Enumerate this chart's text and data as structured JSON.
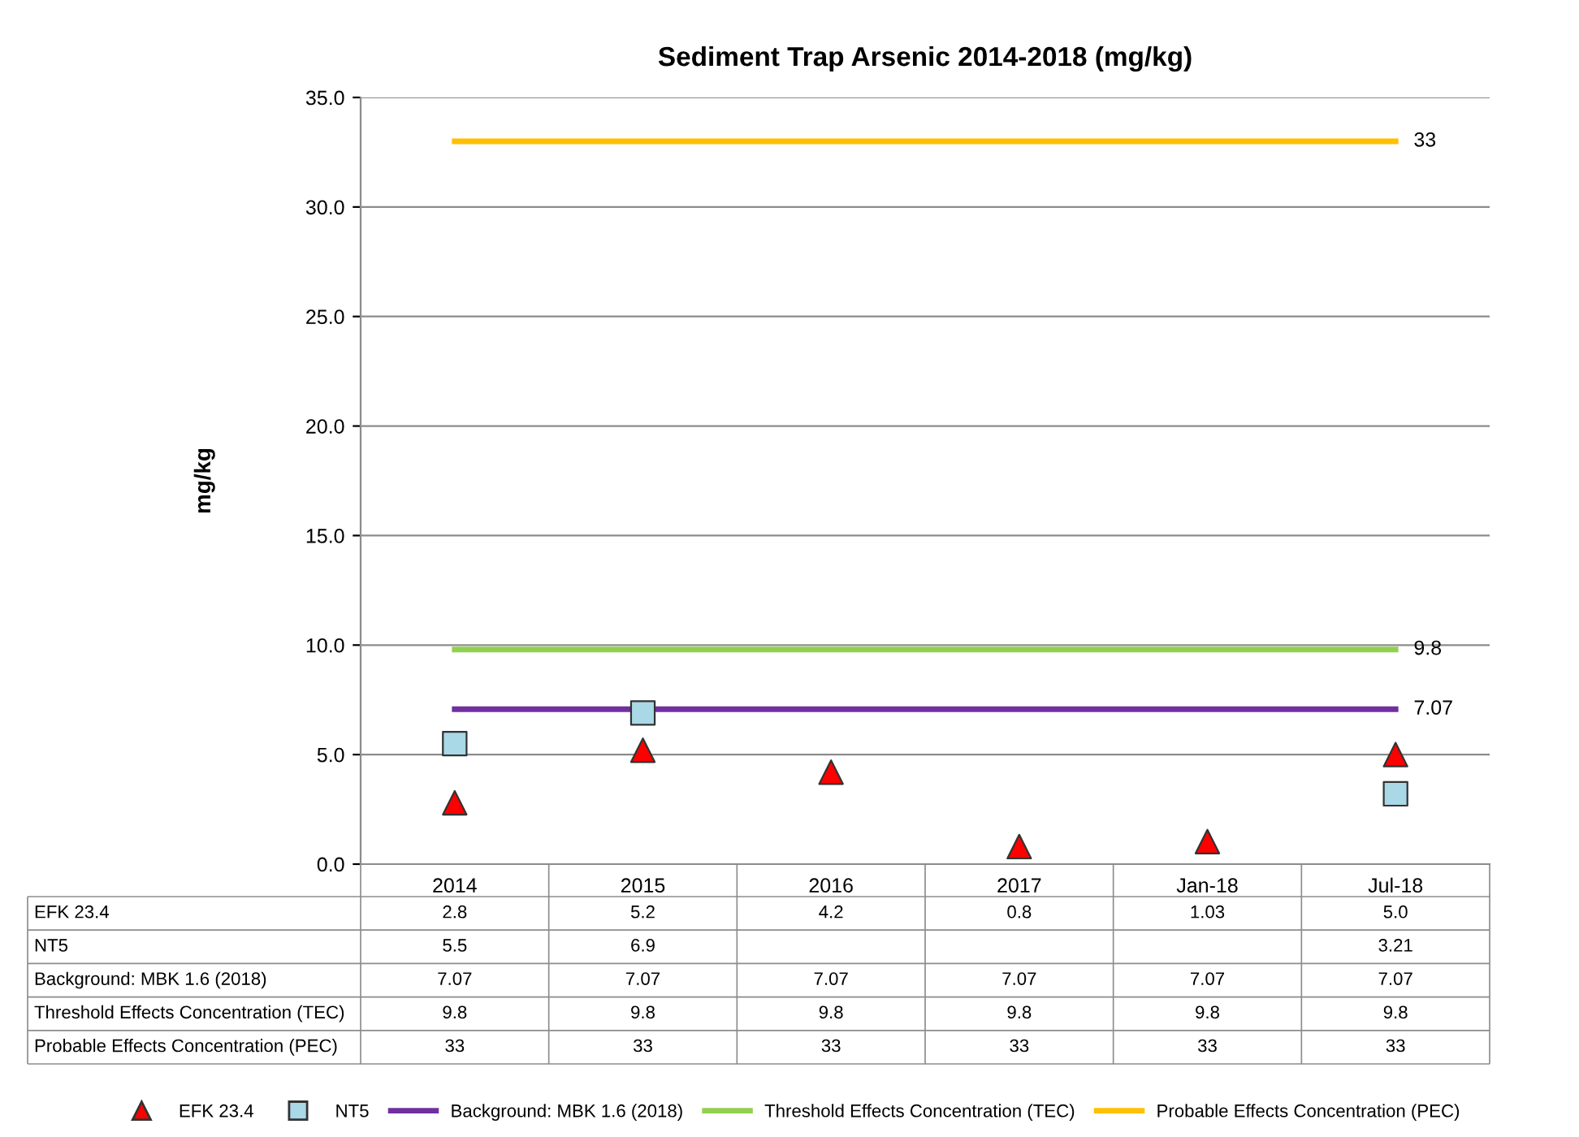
{
  "chart_data": {
    "type": "line",
    "title": "Sediment Trap Arsenic 2014-2018 (mg/kg)",
    "ylabel": "mg/kg",
    "categories": [
      "2014",
      "2015",
      "2016",
      "2017",
      "Jan-18",
      "Jul-18"
    ],
    "ylim": [
      0,
      35
    ],
    "yticks": [
      {
        "value": 0,
        "label": "0.0"
      },
      {
        "value": 5,
        "label": "5.0"
      },
      {
        "value": 10,
        "label": "10.0"
      },
      {
        "value": 15,
        "label": "15.0"
      },
      {
        "value": 20,
        "label": "20.0"
      },
      {
        "value": 25,
        "label": "25.0"
      },
      {
        "value": 30,
        "label": "30.0"
      },
      {
        "value": 35,
        "label": "35.0"
      }
    ],
    "grid": "y",
    "legend": "bottom",
    "series": [
      {
        "name": "EFK 23.4",
        "type": "scatter",
        "marker": "triangle",
        "color": "#ff0000",
        "values": [
          2.8,
          5.2,
          4.2,
          0.8,
          1.03,
          5.0
        ],
        "value_labels": [
          "2.8",
          "5.2",
          "4.2",
          "0.8",
          "1.03",
          "5.0"
        ]
      },
      {
        "name": "NT5",
        "type": "scatter",
        "marker": "square",
        "color": "#a9d8e6",
        "values": [
          5.5,
          6.9,
          null,
          null,
          null,
          3.21
        ],
        "value_labels": [
          "5.5",
          "6.9",
          null,
          null,
          null,
          "3.21"
        ]
      },
      {
        "name": "Background: MBK 1.6 (2018)",
        "marker": "none",
        "color": "#7030a0",
        "values": [
          7.07,
          7.07,
          7.07,
          7.07,
          7.07,
          7.07
        ],
        "value_labels": [
          "7.07",
          "7.07",
          "7.07",
          "7.07",
          "7.07",
          "7.07"
        ]
      },
      {
        "name": "Threshold Effects Concentration (TEC)",
        "marker": "none",
        "color": "#92d050",
        "values": [
          9.8,
          9.8,
          9.8,
          9.8,
          9.8,
          9.8
        ],
        "value_labels": [
          "9.8",
          "9.8",
          "9.8",
          "9.8",
          "9.8",
          "9.8"
        ]
      },
      {
        "name": "Probable Effects Concentration (PEC)",
        "marker": "none",
        "color": "#ffc000",
        "values": [
          33,
          33,
          33,
          33,
          33,
          33
        ],
        "value_labels": [
          "33",
          "33",
          "33",
          "33",
          "33",
          "33"
        ]
      }
    ],
    "annotations": [
      {
        "text": "33",
        "x": "Jul-18",
        "y": 33
      },
      {
        "text": "9.8",
        "x": "Jul-18",
        "y": 9.8
      },
      {
        "text": "7.07",
        "x": "Jul-18",
        "y": 7.07
      }
    ]
  }
}
